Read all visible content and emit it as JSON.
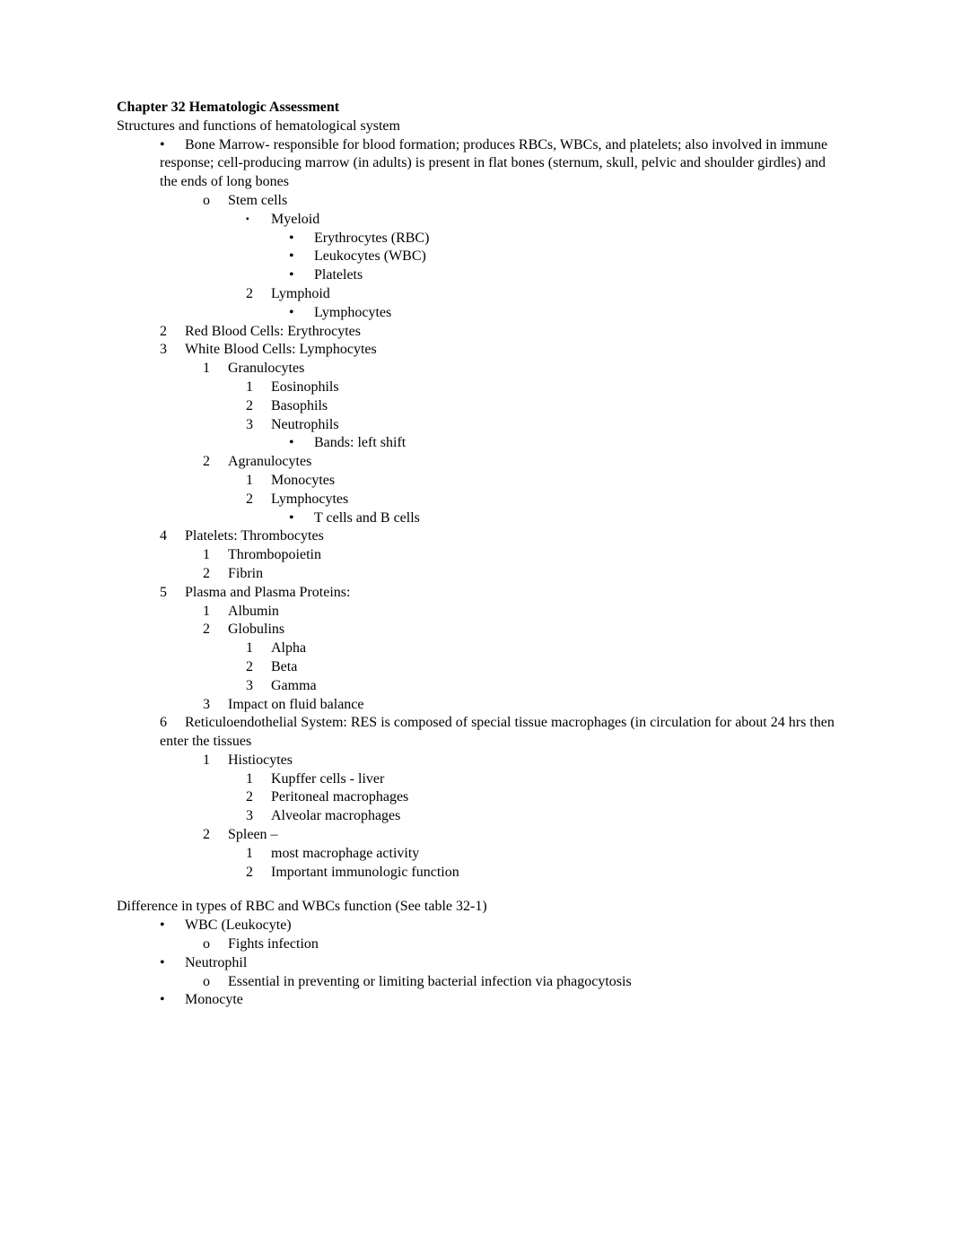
{
  "title": "Chapter 32 Hematologic Assessment",
  "section1_heading": "Structures and functions of hematological system",
  "s1": {
    "boneMarrow": "Bone Marrow- responsible for blood formation; produces RBCs, WBCs, and platelets; also involved in immune response; cell-producing marrow (in adults) is present in flat bones (sternum, skull, pelvic and shoulder girdles) and the ends of long bones",
    "stemCells": "Stem cells",
    "myeloid": "Myeloid",
    "erythrocytes": "Erythrocytes (RBC)",
    "leukocytes": "Leukocytes (WBC)",
    "platelets": "Platelets",
    "lymphoid": "Lymphoid",
    "lymphocytes": "Lymphocytes",
    "rbc": "Red Blood Cells: Erythrocytes",
    "wbc": "White Blood Cells: Lymphocytes",
    "granulocytes": "Granulocytes",
    "eosinophils": "Eosinophils",
    "basophils": "Basophils",
    "neutrophils": "Neutrophils",
    "bands": "Bands: left shift",
    "agranulocytes": "Agranulocytes",
    "monocytes": "Monocytes",
    "lymphocytes2": "Lymphocytes",
    "tcells": "T cells and B cells",
    "plateletsThromb": "Platelets: Thrombocytes",
    "thrombopoietin": "Thrombopoietin",
    "fibrin": "Fibrin",
    "plasma": "Plasma and Plasma Proteins:",
    "albumin": "Albumin",
    "globulins": "Globulins",
    "alpha": "Alpha",
    "beta": "Beta",
    "gamma": "Gamma",
    "fluidBalance": "Impact on fluid balance",
    "res": "Reticuloendothelial System: RES is composed of special tissue macrophages (in circulation for about 24 hrs then enter the tissues",
    "histiocytes": "Histiocytes",
    "kupffer": "Kupffer cells - liver",
    "peritoneal": "Peritoneal macrophages",
    "alveolar": "Alveolar macrophages",
    "spleen": "Spleen –",
    "macrophageActivity": "most macrophage activity",
    "immunologic": "Important immunologic function"
  },
  "section2_heading": "Difference in types of RBC and WBCs function (See table 32-1)",
  "s2": {
    "wbcLeukocyte": "WBC (Leukocyte)",
    "fightsInfection": "Fights infection",
    "neutrophil": "Neutrophil",
    "neutrophilDesc": "Essential in preventing or limiting bacterial infection via phagocytosis",
    "monocyte": "Monocyte"
  },
  "markers": {
    "disc": "•",
    "square": "▪",
    "circleO": "o",
    "n1": "1",
    "n2": "2",
    "n3": "3",
    "n4": "4",
    "n5": "5",
    "n6": "6"
  }
}
